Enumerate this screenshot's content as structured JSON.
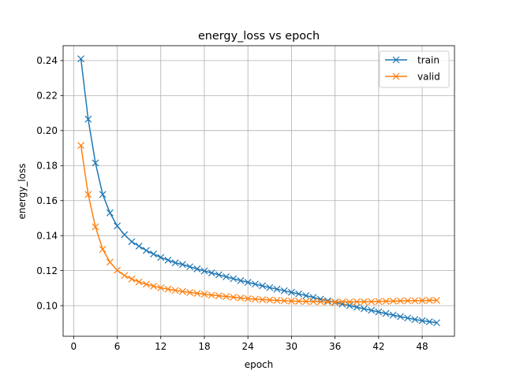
{
  "chart_data": {
    "type": "line",
    "title": "energy_loss vs epoch",
    "xlabel": "epoch",
    "ylabel": "energy_loss",
    "xlim": [
      -1.45,
      52.45
    ],
    "ylim": [
      0.0825,
      0.2485
    ],
    "xticks": [
      0,
      6,
      12,
      18,
      24,
      30,
      36,
      42,
      48
    ],
    "yticks": [
      0.1,
      0.12,
      0.14,
      0.16,
      0.18,
      0.2,
      0.22,
      0.24
    ],
    "ytick_labels": [
      "0.10",
      "0.12",
      "0.14",
      "0.16",
      "0.18",
      "0.20",
      "0.22",
      "0.24"
    ],
    "grid": true,
    "legend_position": "top-right",
    "marker": "x",
    "x": [
      1,
      2,
      3,
      4,
      5,
      6,
      7,
      8,
      9,
      10,
      11,
      12,
      13,
      14,
      15,
      16,
      17,
      18,
      19,
      20,
      21,
      22,
      23,
      24,
      25,
      26,
      27,
      28,
      29,
      30,
      31,
      32,
      33,
      34,
      35,
      36,
      37,
      38,
      39,
      40,
      41,
      42,
      43,
      44,
      45,
      46,
      47,
      48,
      49,
      50
    ],
    "series": [
      {
        "name": "train",
        "color": "#1f77b4",
        "values": [
          0.241,
          0.2065,
          0.1815,
          0.1635,
          0.153,
          0.1455,
          0.1405,
          0.1365,
          0.134,
          0.1315,
          0.1295,
          0.1275,
          0.126,
          0.1245,
          0.1235,
          0.1222,
          0.121,
          0.1198,
          0.1187,
          0.1176,
          0.1165,
          0.1154,
          0.1143,
          0.1133,
          0.1123,
          0.1113,
          0.1103,
          0.1094,
          0.1085,
          0.1076,
          0.1067,
          0.1057,
          0.1047,
          0.1037,
          0.1028,
          0.1018,
          0.1009,
          0.1,
          0.0991,
          0.0982,
          0.0973,
          0.0964,
          0.0955,
          0.0946,
          0.0937,
          0.0929,
          0.0921,
          0.0914,
          0.0908,
          0.0902
        ]
      },
      {
        "name": "valid",
        "color": "#ff7f0e",
        "values": [
          0.1915,
          0.1635,
          0.145,
          0.1322,
          0.1248,
          0.1202,
          0.1172,
          0.1152,
          0.1135,
          0.1122,
          0.1111,
          0.1102,
          0.1094,
          0.1087,
          0.1081,
          0.1075,
          0.107,
          0.1065,
          0.106,
          0.1056,
          0.1052,
          0.1048,
          0.1044,
          0.104,
          0.1037,
          0.1034,
          0.1032,
          0.103,
          0.1028,
          0.1026,
          0.1025,
          0.1024,
          0.1023,
          0.1022,
          0.1021,
          0.1021,
          0.1021,
          0.1021,
          0.1022,
          0.1022,
          0.1023,
          0.1024,
          0.1025,
          0.1026,
          0.1027,
          0.1028,
          0.1028,
          0.1029,
          0.103,
          0.103
        ]
      }
    ]
  }
}
